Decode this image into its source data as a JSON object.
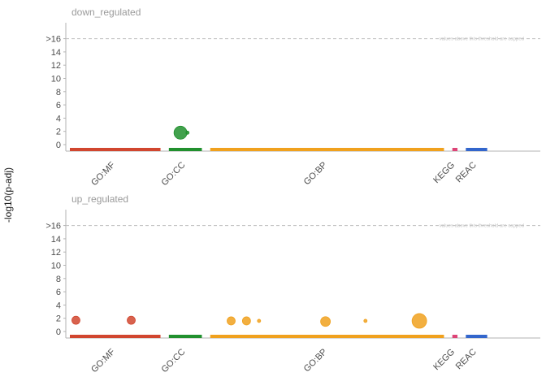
{
  "chart_data": {
    "type": "scatter",
    "ylabel": "-log10(p-adj)",
    "y_ticks": [
      "0",
      "2",
      "4",
      "6",
      "8",
      "10",
      "12",
      "14",
      ">16"
    ],
    "ylim": [
      0,
      16
    ],
    "threshold": {
      "value": 16,
      "note": "values above this threshold are capped"
    },
    "sources": [
      {
        "name": "GO:MF",
        "color": "#d1462f",
        "range": [
          0,
          0.195
        ]
      },
      {
        "name": "GO:CC",
        "color": "#21902e",
        "range": [
          0.213,
          0.284
        ]
      },
      {
        "name": "GO:BP",
        "color": "#f0a11e",
        "range": [
          0.302,
          0.805
        ]
      },
      {
        "name": "KEGG",
        "color": "#dd4477",
        "range": [
          0.823,
          0.834
        ]
      },
      {
        "name": "REAC",
        "color": "#3366cc",
        "range": [
          0.852,
          0.898
        ]
      }
    ],
    "panels": [
      {
        "title": "down_regulated",
        "points": [
          {
            "source": "GO:CC",
            "x": 0.238,
            "y": 1.8,
            "size": 8
          },
          {
            "source": "GO:CC",
            "x": 0.253,
            "y": 1.8,
            "size": 2
          }
        ]
      },
      {
        "title": "up_regulated",
        "points": [
          {
            "source": "GO:MF",
            "x": 0.013,
            "y": 1.7,
            "size": 5
          },
          {
            "source": "GO:MF",
            "x": 0.132,
            "y": 1.7,
            "size": 5
          },
          {
            "source": "GO:BP",
            "x": 0.347,
            "y": 1.6,
            "size": 5
          },
          {
            "source": "GO:BP",
            "x": 0.38,
            "y": 1.6,
            "size": 5
          },
          {
            "source": "GO:BP",
            "x": 0.407,
            "y": 1.6,
            "size": 2
          },
          {
            "source": "GO:BP",
            "x": 0.55,
            "y": 1.5,
            "size": 6
          },
          {
            "source": "GO:BP",
            "x": 0.636,
            "y": 1.6,
            "size": 2
          },
          {
            "source": "GO:BP",
            "x": 0.752,
            "y": 1.6,
            "size": 9
          }
        ]
      }
    ]
  }
}
